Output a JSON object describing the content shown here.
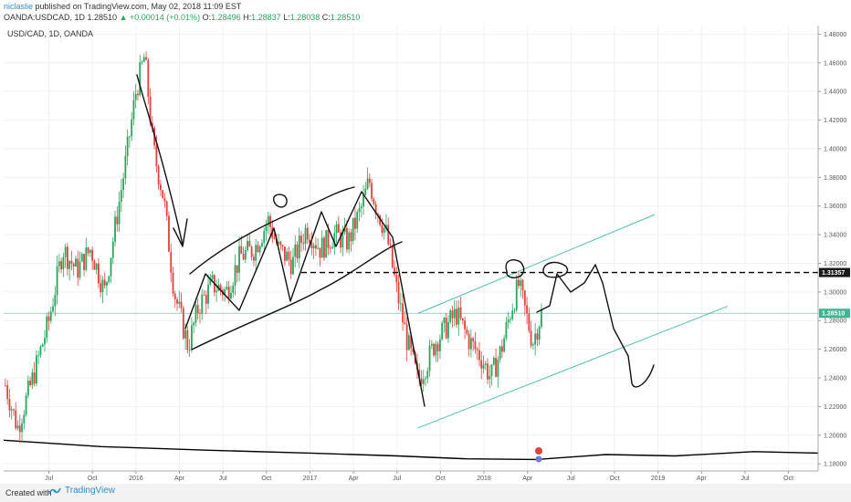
{
  "header": {
    "author": "niclaslie",
    "published": "published on TradingView.com, May 02, 2018 11:09 EST",
    "symbol": "OANDA:USDCAD, 1D",
    "last": "1.28510",
    "change": "▲ +0.00014 (+0.01%)",
    "open_label": "O:",
    "open": "1.28496",
    "high_label": "H:",
    "high": "1.28837",
    "low_label": "L:",
    "low": "1.28038",
    "close_label": "C:",
    "close": "1.28510"
  },
  "chart_label": "USD/CAD, 1D, OANDA",
  "footer": {
    "created": "Created with",
    "brand": "TradingView"
  },
  "colors": {
    "up": "#26a65b",
    "down": "#e0413b",
    "channel": "#4fc1a9",
    "current_price": "#3fb493",
    "drawing": "#111111"
  },
  "icons": [
    "tradingview-logo-icon",
    "event-flag-icon"
  ],
  "chart_data": {
    "type": "candlestick",
    "title": "",
    "x_ticks": [
      "Jul",
      "Oct",
      "2016",
      "Apr",
      "Jul",
      "Oct",
      "2017",
      "Apr",
      "Jul",
      "Oct",
      "2018",
      "Apr",
      "Jul",
      "Oct",
      "2019",
      "Apr",
      "Jul",
      "Oct"
    ],
    "x_tick_values": [
      2015.5,
      2015.75,
      2016.0,
      2016.25,
      2016.5,
      2016.75,
      2017.0,
      2017.25,
      2017.5,
      2017.75,
      2018.0,
      2018.25,
      2018.5,
      2018.75,
      2019.0,
      2019.25,
      2019.5,
      2019.75
    ],
    "y_ticks": [
      "1.48000",
      "1.46000",
      "1.44000",
      "1.42000",
      "1.40000",
      "1.38000",
      "1.36000",
      "1.34000",
      "1.32000",
      "1.30000",
      "1.28000",
      "1.26000",
      "1.24000",
      "1.22000",
      "1.20000",
      "1.18000"
    ],
    "y_tick_values": [
      1.48,
      1.46,
      1.44,
      1.42,
      1.4,
      1.38,
      1.36,
      1.34,
      1.32,
      1.3,
      1.28,
      1.26,
      1.24,
      1.22,
      1.2,
      1.18
    ],
    "ylim": [
      1.175,
      1.486
    ],
    "xlim": [
      2015.24,
      2019.92
    ],
    "grid": true,
    "path_points": [
      [
        2015.25,
        1.235
      ],
      [
        2015.32,
        1.205
      ],
      [
        2015.42,
        1.245
      ],
      [
        2015.5,
        1.28
      ],
      [
        2015.58,
        1.33
      ],
      [
        2015.66,
        1.315
      ],
      [
        2015.74,
        1.33
      ],
      [
        2015.82,
        1.3
      ],
      [
        2015.88,
        1.345
      ],
      [
        2015.94,
        1.39
      ],
      [
        2016.0,
        1.44
      ],
      [
        2016.05,
        1.465
      ],
      [
        2016.1,
        1.4
      ],
      [
        2016.16,
        1.365
      ],
      [
        2016.22,
        1.3
      ],
      [
        2016.3,
        1.262
      ],
      [
        2016.36,
        1.29
      ],
      [
        2016.44,
        1.305
      ],
      [
        2016.52,
        1.3
      ],
      [
        2016.6,
        1.325
      ],
      [
        2016.68,
        1.33
      ],
      [
        2016.76,
        1.35
      ],
      [
        2016.82,
        1.33
      ],
      [
        2016.9,
        1.32
      ],
      [
        2016.98,
        1.345
      ],
      [
        2017.06,
        1.33
      ],
      [
        2017.14,
        1.34
      ],
      [
        2017.22,
        1.335
      ],
      [
        2017.3,
        1.36
      ],
      [
        2017.34,
        1.378
      ],
      [
        2017.38,
        1.36
      ],
      [
        2017.44,
        1.34
      ],
      [
        2017.5,
        1.3
      ],
      [
        2017.56,
        1.265
      ],
      [
        2017.62,
        1.238
      ],
      [
        2017.67,
        1.25
      ],
      [
        2017.72,
        1.265
      ],
      [
        2017.78,
        1.275
      ],
      [
        2017.84,
        1.285
      ],
      [
        2017.92,
        1.265
      ],
      [
        2017.98,
        1.255
      ],
      [
        2018.04,
        1.24
      ],
      [
        2018.1,
        1.26
      ],
      [
        2018.16,
        1.29
      ],
      [
        2018.2,
        1.305
      ],
      [
        2018.24,
        1.285
      ],
      [
        2018.28,
        1.265
      ],
      [
        2018.33,
        1.285
      ]
    ],
    "last_value": 1.2851,
    "moving_average": [
      [
        2015.24,
        1.1965
      ],
      [
        2015.8,
        1.192
      ],
      [
        2016.4,
        1.1895
      ],
      [
        2017.0,
        1.1875
      ],
      [
        2017.5,
        1.1855
      ],
      [
        2017.9,
        1.1835
      ],
      [
        2018.3,
        1.183
      ],
      [
        2018.7,
        1.1865
      ],
      [
        2019.1,
        1.1855
      ],
      [
        2019.55,
        1.1885
      ],
      [
        2019.92,
        1.1875
      ]
    ],
    "channel_upper": [
      [
        2017.62,
        1.285
      ],
      [
        2018.98,
        1.354
      ]
    ],
    "channel_lower": [
      [
        2017.62,
        1.205
      ],
      [
        2019.4,
        1.29
      ]
    ],
    "horizontal_level": 1.31357,
    "current_price_label": "1.28510",
    "level_label": "1.31357"
  }
}
